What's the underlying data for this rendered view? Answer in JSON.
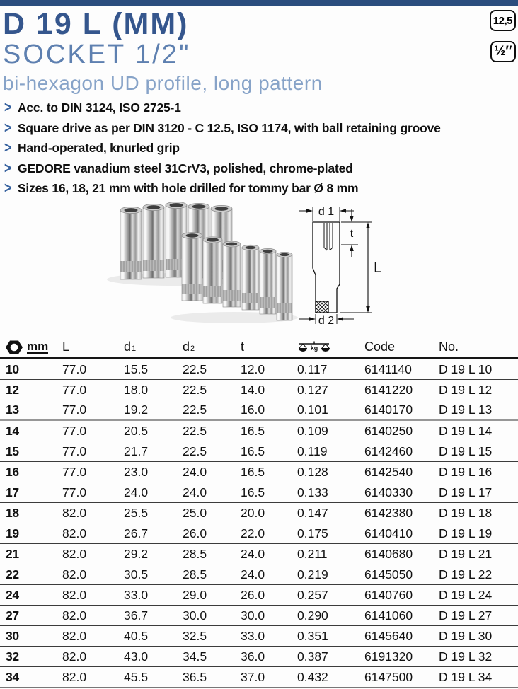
{
  "page": {
    "accent_bar_color": "#2b4d7e"
  },
  "header": {
    "title": "D 19 L (MM)",
    "subtitle": "SOCKET 1/2\"",
    "tagline": "bi-hexagon UD profile, long pattern",
    "badges": [
      {
        "text": "12,5"
      },
      {
        "text": "½″"
      }
    ]
  },
  "features": [
    "Acc. to DIN 3124, ISO 2725-1",
    "Square drive as per DIN 3120 - C 12.5, ISO 1174, with ball retaining groove",
    "Hand-operated, knurled grip",
    "GEDORE vanadium steel 31CrV3, polished, chrome-plated",
    "Sizes 16, 18, 21 mm with hole drilled for tommy bar Ø 8 mm"
  ],
  "diagram": {
    "d1": "d 1",
    "t": "t",
    "L": "L",
    "d2": "d 2"
  },
  "table": {
    "headers": {
      "size_unit": "mm",
      "length": "L",
      "d1_base": "d",
      "d1_sub": "1",
      "d2_base": "d",
      "d2_sub": "2",
      "t": "t",
      "weight_unit": "kg",
      "code": "Code",
      "no": "No."
    },
    "rows": [
      {
        "size": "10",
        "L": "77.0",
        "d1": "15.5",
        "d2": "22.5",
        "t": "12.0",
        "weight": "0.117",
        "code": "6141140",
        "no": "D 19 L 10"
      },
      {
        "size": "12",
        "L": "77.0",
        "d1": "18.0",
        "d2": "22.5",
        "t": "14.0",
        "weight": "0.127",
        "code": "6141220",
        "no": "D 19 L 12"
      },
      {
        "size": "13",
        "L": "77.0",
        "d1": "19.2",
        "d2": "22.5",
        "t": "16.0",
        "weight": "0.101",
        "code": "6140170",
        "no": "D 19 L 13",
        "group_end": true
      },
      {
        "size": "14",
        "L": "77.0",
        "d1": "20.5",
        "d2": "22.5",
        "t": "16.5",
        "weight": "0.109",
        "code": "6140250",
        "no": "D 19 L 14"
      },
      {
        "size": "15",
        "L": "77.0",
        "d1": "21.7",
        "d2": "22.5",
        "t": "16.5",
        "weight": "0.119",
        "code": "6142460",
        "no": "D 19 L 15"
      },
      {
        "size": "16",
        "L": "77.0",
        "d1": "23.0",
        "d2": "24.0",
        "t": "16.5",
        "weight": "0.128",
        "code": "6142540",
        "no": "D 19 L 16"
      },
      {
        "size": "17",
        "L": "77.0",
        "d1": "24.0",
        "d2": "24.0",
        "t": "16.5",
        "weight": "0.133",
        "code": "6140330",
        "no": "D 19 L 17"
      },
      {
        "size": "18",
        "L": "82.0",
        "d1": "25.5",
        "d2": "25.0",
        "t": "20.0",
        "weight": "0.147",
        "code": "6142380",
        "no": "D 19 L 18"
      },
      {
        "size": "19",
        "L": "82.0",
        "d1": "26.7",
        "d2": "26.0",
        "t": "22.0",
        "weight": "0.175",
        "code": "6140410",
        "no": "D 19 L 19"
      },
      {
        "size": "21",
        "L": "82.0",
        "d1": "29.2",
        "d2": "28.5",
        "t": "24.0",
        "weight": "0.211",
        "code": "6140680",
        "no": "D 19 L 21"
      },
      {
        "size": "22",
        "L": "82.0",
        "d1": "30.5",
        "d2": "28.5",
        "t": "24.0",
        "weight": "0.219",
        "code": "6145050",
        "no": "D 19 L 22"
      },
      {
        "size": "24",
        "L": "82.0",
        "d1": "33.0",
        "d2": "29.0",
        "t": "26.0",
        "weight": "0.257",
        "code": "6140760",
        "no": "D 19 L 24"
      },
      {
        "size": "27",
        "L": "82.0",
        "d1": "36.7",
        "d2": "30.0",
        "t": "30.0",
        "weight": "0.290",
        "code": "6141060",
        "no": "D 19 L 27"
      },
      {
        "size": "30",
        "L": "82.0",
        "d1": "40.5",
        "d2": "32.5",
        "t": "33.0",
        "weight": "0.351",
        "code": "6145640",
        "no": "D 19 L 30"
      },
      {
        "size": "32",
        "L": "82.0",
        "d1": "43.0",
        "d2": "34.5",
        "t": "36.0",
        "weight": "0.387",
        "code": "6191320",
        "no": "D 19 L 32"
      },
      {
        "size": "34",
        "L": "82.0",
        "d1": "45.5",
        "d2": "36.5",
        "t": "37.0",
        "weight": "0.432",
        "code": "6147500",
        "no": "D 19 L 34"
      }
    ]
  }
}
